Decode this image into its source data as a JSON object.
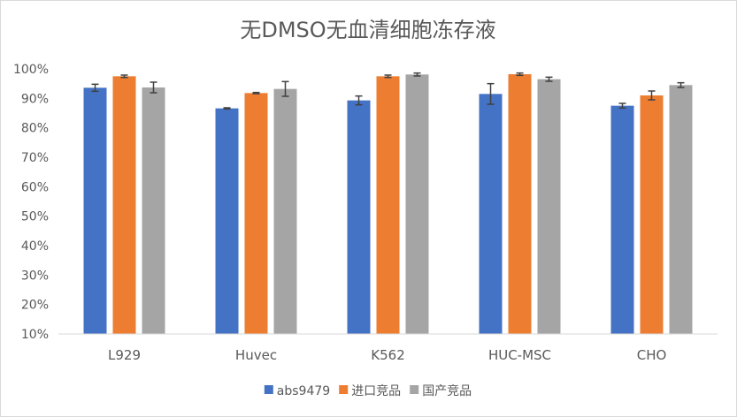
{
  "chart_data": {
    "type": "bar",
    "title": "无DMSO无血清细胞冻存液",
    "xlabel": "",
    "ylabel": "",
    "ylim": [
      0.1,
      1.0
    ],
    "yticks": [
      0.1,
      0.2,
      0.3,
      0.4,
      0.5,
      0.6,
      0.7,
      0.8,
      0.9,
      1.0
    ],
    "ytick_labels": [
      "10%",
      "20%",
      "30%",
      "40%",
      "50%",
      "60%",
      "70%",
      "80%",
      "90%",
      "100%"
    ],
    "grid": false,
    "legend_position": "bottom",
    "categories": [
      "L929",
      "Huvec",
      "K562",
      "HUC-MSC",
      "CHO"
    ],
    "series": [
      {
        "name": "abs9479",
        "color": "#4472C4",
        "values": [
          0.936,
          0.866,
          0.893,
          0.915,
          0.875
        ],
        "errors": [
          0.012,
          0.002,
          0.015,
          0.035,
          0.008
        ]
      },
      {
        "name": "进口竞品",
        "color": "#ED7D31",
        "values": [
          0.975,
          0.918,
          0.975,
          0.982,
          0.91
        ],
        "errors": [
          0.004,
          0.002,
          0.004,
          0.004,
          0.015
        ]
      },
      {
        "name": "国产竞品",
        "color": "#A5A5A5",
        "values": [
          0.937,
          0.932,
          0.981,
          0.965,
          0.945
        ],
        "errors": [
          0.018,
          0.025,
          0.005,
          0.007,
          0.008
        ]
      }
    ]
  }
}
